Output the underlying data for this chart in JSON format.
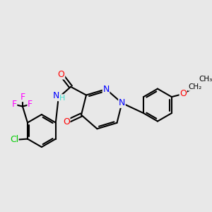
{
  "bg_color": "#e8e8e8",
  "atom_colors": {
    "C": "#000000",
    "N": "#0000ff",
    "O": "#ff0000",
    "F": "#ff00ff",
    "Cl": "#00cc00",
    "H": "#40e0d0"
  },
  "bond_color": "#000000",
  "bond_width": 1.5
}
